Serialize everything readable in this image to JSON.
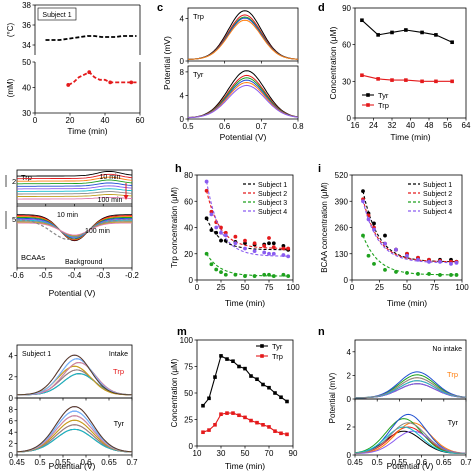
{
  "palette": {
    "black": "#000000",
    "red": "#e41a1c",
    "green": "#1ea11e",
    "purple": "#8a5cf0",
    "blue": "#1f4fd1",
    "orange": "#ff7f0e",
    "cyan": "#17becf",
    "gray": "#888888"
  },
  "chart_data": [
    {
      "id": "top-left-temperature",
      "type": "line",
      "title": "",
      "xlabel": "Time (min)",
      "ylabel": "(°C)",
      "xlim": [
        0,
        60
      ],
      "ylim": [
        33,
        38
      ],
      "xticks": [
        0,
        20,
        40,
        60
      ],
      "yticks": [
        34,
        36,
        38
      ],
      "annotations": [
        "Subject 1"
      ],
      "series": [
        {
          "color": "black",
          "x": [
            6,
            10,
            14,
            18,
            22,
            26,
            30,
            34,
            38,
            42,
            46,
            50,
            54,
            58
          ],
          "values": [
            34.5,
            34.5,
            34.5,
            34.6,
            34.7,
            34.8,
            34.9,
            34.9,
            34.8,
            34.8,
            34.8,
            34.9,
            34.9,
            34.9
          ]
        }
      ]
    },
    {
      "id": "top-left-concentration",
      "type": "line",
      "title": "",
      "xlabel": "Time (min)",
      "ylabel": "(mM)",
      "xlim": [
        0,
        60
      ],
      "ylim": [
        30,
        50
      ],
      "xticks": [
        0,
        20,
        40,
        60
      ],
      "yticks": [
        30,
        40,
        50
      ],
      "series": [
        {
          "color": "red",
          "x": [
            19,
            22,
            25,
            28,
            31,
            34,
            37,
            40,
            43,
            46,
            49,
            52,
            55,
            58
          ],
          "values": [
            41,
            42,
            44,
            45,
            46,
            44,
            43,
            43,
            42,
            42,
            42,
            42,
            42,
            42
          ]
        }
      ]
    },
    {
      "id": "c",
      "panel_label": "c",
      "type": "line",
      "xlabel": "Potential (V)",
      "ylabel": "Potential (mV)",
      "xlim": [
        0.5,
        0.8
      ],
      "xticks": [
        0.5,
        0.6,
        0.7,
        0.8
      ],
      "upper": {
        "label": "Trp",
        "ylim": [
          0,
          4
        ],
        "yticks": [
          0,
          4
        ],
        "series": [
          {
            "color": "black",
            "peak": 4.6
          },
          {
            "color": "red",
            "peak": 4.2
          },
          {
            "color": "green",
            "peak": 4.0
          },
          {
            "color": "blue",
            "peak": 3.9
          },
          {
            "color": "orange",
            "peak": 3.7
          }
        ]
      },
      "lower": {
        "label": "Tyr",
        "ylim": [
          0,
          8
        ],
        "yticks": [
          0,
          4,
          8
        ],
        "series": [
          {
            "color": "black",
            "peak": 8.0
          },
          {
            "color": "red",
            "peak": 7.2
          },
          {
            "color": "green",
            "peak": 6.8
          },
          {
            "color": "blue",
            "peak": 6.4
          },
          {
            "color": "orange",
            "peak": 6.0
          },
          {
            "color": "purple",
            "peak": 5.5
          }
        ]
      }
    },
    {
      "id": "d",
      "panel_label": "d",
      "type": "line",
      "xlabel": "Time (min)",
      "ylabel": "Concentration (μM)",
      "xlim": [
        16,
        64
      ],
      "ylim": [
        0,
        90
      ],
      "xticks": [
        16,
        24,
        32,
        40,
        48,
        56,
        64
      ],
      "yticks": [
        0,
        30,
        60,
        90
      ],
      "legend": "lower-left",
      "series": [
        {
          "name": "Tyr",
          "color": "black",
          "x": [
            19,
            26,
            32,
            38,
            45,
            51,
            58
          ],
          "values": [
            80,
            68,
            70,
            72,
            70,
            68,
            62
          ]
        },
        {
          "name": "Trp",
          "color": "red",
          "x": [
            19,
            26,
            32,
            38,
            45,
            51,
            58
          ],
          "values": [
            35,
            32,
            31,
            31,
            30,
            30,
            30
          ]
        }
      ]
    },
    {
      "id": "g",
      "type": "line",
      "xlabel": "Potential (V)",
      "xlim": [
        -0.6,
        -0.2
      ],
      "xticks": [
        -0.6,
        -0.5,
        -0.4,
        -0.3,
        -0.2
      ],
      "upper": {
        "label": "Trp",
        "scale_label": "2",
        "annotations": [
          "10 min",
          "100 min"
        ]
      },
      "lower": {
        "label": "BCAAs",
        "scale_label": "5",
        "annotations": [
          "10 min",
          "100 min",
          "Background"
        ]
      }
    },
    {
      "id": "h",
      "panel_label": "h",
      "type": "scatter",
      "xlabel": "Time (min)",
      "ylabel": "Trp concentration (μM)",
      "xlim": [
        0,
        100
      ],
      "ylim": [
        0,
        80
      ],
      "xticks": [
        0,
        25,
        50,
        75,
        100
      ],
      "yticks": [
        0,
        20,
        40,
        60,
        80
      ],
      "legend": "top-right",
      "series": [
        {
          "name": "Subject 1",
          "color": "black",
          "x": [
            10,
            15,
            20,
            25,
            30,
            40,
            50,
            60,
            70,
            75,
            80,
            90,
            95
          ],
          "values": [
            47,
            38,
            36,
            30,
            30,
            29,
            28,
            27,
            27,
            28,
            28,
            26,
            23
          ]
        },
        {
          "name": "Subject 2",
          "color": "red",
          "x": [
            10,
            15,
            20,
            25,
            30,
            40,
            50,
            60,
            70,
            75,
            80,
            90,
            95
          ],
          "values": [
            68,
            52,
            44,
            40,
            36,
            33,
            30,
            28,
            26,
            32,
            25,
            24,
            24
          ]
        },
        {
          "name": "Subject 3",
          "color": "green",
          "x": [
            10,
            15,
            20,
            25,
            30,
            40,
            50,
            60,
            70,
            75,
            80,
            90,
            95
          ],
          "values": [
            20,
            12,
            8,
            6,
            4,
            4,
            3,
            3,
            4,
            4,
            3,
            4,
            3
          ]
        },
        {
          "name": "Subject 4",
          "color": "purple",
          "x": [
            10,
            15,
            20,
            25,
            30,
            40,
            50,
            60,
            70,
            75,
            80,
            90,
            95
          ],
          "values": [
            75,
            50,
            40,
            36,
            34,
            28,
            24,
            22,
            21,
            20,
            20,
            19,
            18
          ]
        }
      ]
    },
    {
      "id": "i",
      "panel_label": "i",
      "type": "scatter",
      "xlabel": "Time (min)",
      "ylabel": "BCAA concentration (μM)",
      "xlim": [
        0,
        100
      ],
      "ylim": [
        0,
        520
      ],
      "xticks": [
        0,
        25,
        50,
        75,
        100
      ],
      "yticks": [
        0,
        130,
        260,
        390,
        520
      ],
      "legend": "top-right",
      "series": [
        {
          "name": "Subject 1",
          "color": "black",
          "x": [
            10,
            15,
            20,
            30,
            40,
            50,
            60,
            70,
            80,
            90,
            95
          ],
          "values": [
            440,
            330,
            280,
            220,
            150,
            130,
            110,
            100,
            100,
            100,
            90
          ]
        },
        {
          "name": "Subject 2",
          "color": "red",
          "x": [
            10,
            15,
            20,
            30,
            40,
            50,
            60,
            70,
            80,
            90,
            95
          ],
          "values": [
            400,
            320,
            260,
            180,
            150,
            130,
            110,
            100,
            95,
            90,
            90
          ]
        },
        {
          "name": "Subject 3",
          "color": "green",
          "x": [
            10,
            15,
            20,
            30,
            40,
            50,
            60,
            70,
            80,
            90,
            95
          ],
          "values": [
            220,
            120,
            80,
            50,
            40,
            35,
            30,
            30,
            25,
            25,
            25
          ]
        },
        {
          "name": "Subject 4",
          "color": "purple",
          "x": [
            10,
            15,
            20,
            30,
            40,
            50,
            60,
            70,
            80,
            90,
            95
          ],
          "values": [
            390,
            300,
            250,
            180,
            150,
            120,
            100,
            90,
            90,
            80,
            85
          ]
        }
      ]
    },
    {
      "id": "l",
      "type": "line",
      "xlabel": "Potential (V)",
      "xlim": [
        0.45,
        0.7
      ],
      "xticks": [
        0.45,
        0.5,
        0.55,
        0.6,
        0.65,
        0.7
      ],
      "annotations": [
        "Subject 1",
        "Intake"
      ],
      "upper": {
        "label": "Trp",
        "ylim": [
          0,
          4
        ],
        "yticks": [
          0,
          2,
          4
        ]
      },
      "lower": {
        "label": "Tyr",
        "ylim": [
          0,
          8
        ],
        "yticks": [
          0,
          2,
          4,
          6,
          8
        ]
      }
    },
    {
      "id": "m",
      "panel_label": "m",
      "type": "line",
      "xlabel": "Time (min)",
      "ylabel": "Concentration (μM)",
      "xlim": [
        10,
        90
      ],
      "ylim": [
        0,
        100
      ],
      "xticks": [
        10,
        30,
        50,
        70,
        90
      ],
      "yticks": [
        0,
        25,
        50,
        75,
        100
      ],
      "legend": "top-right",
      "series": [
        {
          "name": "Tyr",
          "color": "black",
          "x": [
            15,
            20,
            25,
            30,
            35,
            40,
            45,
            50,
            55,
            60,
            65,
            70,
            75,
            80,
            85
          ],
          "values": [
            38,
            45,
            65,
            85,
            82,
            80,
            75,
            73,
            66,
            63,
            58,
            55,
            50,
            46,
            42
          ]
        },
        {
          "name": "Trp",
          "color": "red",
          "x": [
            15,
            20,
            25,
            30,
            35,
            40,
            45,
            50,
            55,
            60,
            65,
            70,
            75,
            80,
            85
          ],
          "values": [
            13,
            15,
            20,
            30,
            31,
            31,
            29,
            27,
            24,
            22,
            20,
            18,
            14,
            12,
            11
          ]
        }
      ]
    },
    {
      "id": "n",
      "panel_label": "n",
      "type": "line",
      "xlabel": "Potential (V)",
      "ylabel": "Potential (mV)",
      "xlim": [
        0.45,
        0.7
      ],
      "xticks": [
        0.45,
        0.5,
        0.55,
        0.6,
        0.65,
        0.7
      ],
      "annotations": [
        "No intake"
      ],
      "upper": {
        "label": "Trp",
        "ylim": [
          0,
          4
        ],
        "yticks": [
          0,
          2,
          4
        ]
      },
      "lower": {
        "label": "Tyr",
        "ylim": [
          0,
          4
        ],
        "yticks": [
          0,
          2
        ]
      }
    }
  ],
  "panel_letters": {
    "c": "c",
    "d": "d",
    "h": "h",
    "i": "i",
    "m": "m",
    "n": "n"
  }
}
